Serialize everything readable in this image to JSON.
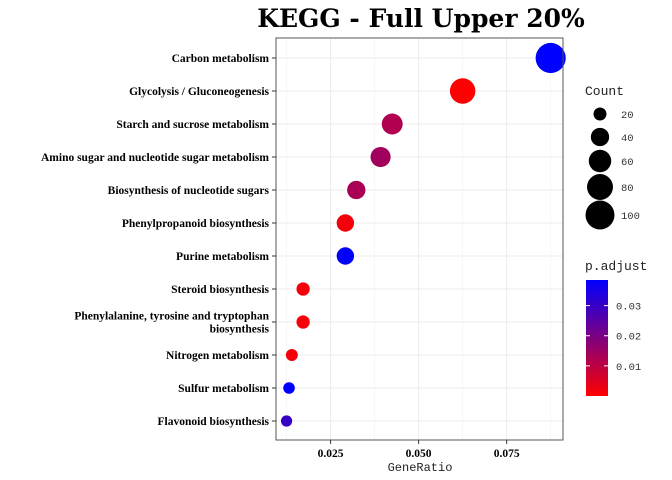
{
  "chart_data": {
    "type": "scatter",
    "title": "KEGG - Full Upper 20%",
    "xlabel": "GeneRatio",
    "ylabel": "",
    "xlim": [
      0.0095,
      0.091
    ],
    "xticks": [
      0.025,
      0.05,
      0.075
    ],
    "xtick_labels": [
      "0.025",
      "0.050",
      "0.075"
    ],
    "grid": true,
    "legend_position": "right",
    "categories": [
      "Carbon metabolism",
      "Glycolysis / Gluconeogenesis",
      "Starch and sucrose metabolism",
      "Amino sugar and nucleotide sugar metabolism",
      "Biosynthesis of nucleotide sugars",
      "Phenylpropanoid biosynthesis",
      "Purine metabolism",
      "Steroid biosynthesis",
      "Phenylalanine, tyrosine and tryptophan biosynthesis",
      "Nitrogen metabolism",
      "Sulfur metabolism",
      "Flavonoid biosynthesis"
    ],
    "category_label_lines": [
      [
        "Carbon metabolism"
      ],
      [
        "Glycolysis / Gluconeogenesis"
      ],
      [
        "Starch and sucrose metabolism"
      ],
      [
        "Amino sugar and nucleotide sugar metabolism"
      ],
      [
        "Biosynthesis of nucleotide sugars"
      ],
      [
        "Phenylpropanoid biosynthesis"
      ],
      [
        "Purine metabolism"
      ],
      [
        "Steroid biosynthesis"
      ],
      [
        "Phenylalanine, tyrosine and tryptophan",
        "biosynthesis"
      ],
      [
        "Nitrogen metabolism"
      ],
      [
        "Sulfur metabolism"
      ],
      [
        "Flavonoid biosynthesis"
      ]
    ],
    "points": [
      {
        "category": "Carbon metabolism",
        "gene_ratio": 0.0875,
        "count": 108,
        "p_adjust": 0.0385
      },
      {
        "category": "Glycolysis / Gluconeogenesis",
        "gene_ratio": 0.0625,
        "count": 77,
        "p_adjust": 0.0002
      },
      {
        "category": "Starch and sucrose metabolism",
        "gene_ratio": 0.0425,
        "count": 52,
        "p_adjust": 0.012
      },
      {
        "category": "Amino sugar and nucleotide sugar metabolism",
        "gene_ratio": 0.0392,
        "count": 48,
        "p_adjust": 0.014
      },
      {
        "category": "Biosynthesis of nucleotide sugars",
        "gene_ratio": 0.0323,
        "count": 40,
        "p_adjust": 0.013
      },
      {
        "category": "Phenylpropanoid biosynthesis",
        "gene_ratio": 0.0292,
        "count": 36,
        "p_adjust": 0.0015
      },
      {
        "category": "Purine metabolism",
        "gene_ratio": 0.0292,
        "count": 36,
        "p_adjust": 0.0385
      },
      {
        "category": "Steroid biosynthesis",
        "gene_ratio": 0.0172,
        "count": 21,
        "p_adjust": 0.0015
      },
      {
        "category": "Phenylalanine, tyrosine and tryptophan biosynthesis",
        "gene_ratio": 0.0172,
        "count": 21,
        "p_adjust": 0.0015
      },
      {
        "category": "Nitrogen metabolism",
        "gene_ratio": 0.014,
        "count": 17,
        "p_adjust": 0.0015
      },
      {
        "category": "Sulfur metabolism",
        "gene_ratio": 0.0132,
        "count": 16,
        "p_adjust": 0.0385
      },
      {
        "category": "Flavonoid biosynthesis",
        "gene_ratio": 0.0125,
        "count": 15,
        "p_adjust": 0.03
      }
    ],
    "size_legend": {
      "title": "Count",
      "breaks": [
        20,
        40,
        60,
        80,
        100
      ],
      "labels": [
        "20",
        "40",
        "60",
        "80",
        "100"
      ]
    },
    "color_legend": {
      "title": "p.adjust",
      "breaks": [
        0.01,
        0.02,
        0.03
      ],
      "labels": [
        "0.01",
        "0.02",
        "0.03"
      ],
      "range": [
        0.0,
        0.0385
      ],
      "low_color": "#ff0000",
      "high_color": "#0000ff"
    },
    "colors": {
      "panel_border": "#555555",
      "grid_major": "#ebebeb",
      "point_size_legend": "#000000"
    }
  }
}
